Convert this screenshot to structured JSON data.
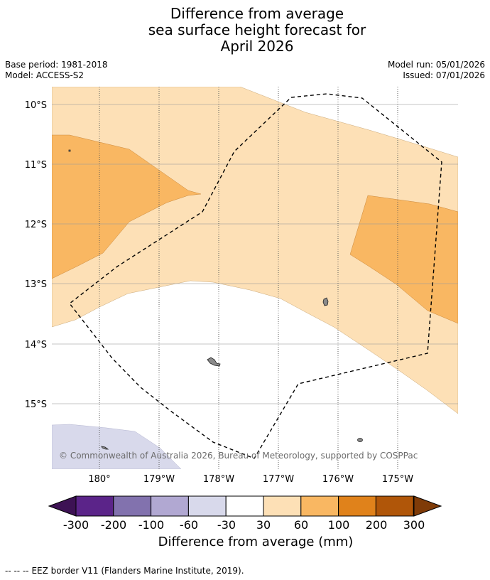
{
  "header": {
    "title_line1": "Difference from average",
    "title_line2": "sea surface height forecast for",
    "title_line3": "April 2026",
    "base_period": "Base period: 1981-2018",
    "model": "Model: ACCESS-S2",
    "model_run": "Model run: 05/01/2026",
    "issued": "Issued: 07/01/2026"
  },
  "map": {
    "lat_labels": [
      "10°S",
      "11°S",
      "12°S",
      "13°S",
      "14°S",
      "15°S"
    ],
    "lon_labels": [
      "180°",
      "179°W",
      "178°W",
      "177°W",
      "176°W",
      "175°W"
    ],
    "copyright": "© Commonwealth of Australia 2026, Bureau of Meteorology, supported by COSPPac"
  },
  "colorbar": {
    "title": "Difference from average (mm)",
    "ticks": [
      "-300",
      "-200",
      "-100",
      "-60",
      "-30",
      "30",
      "60",
      "100",
      "200",
      "300"
    ],
    "colors": [
      "#3d1254",
      "#5b2489",
      "#8272ae",
      "#b1a8d2",
      "#d8d9eb",
      "#ffffff",
      "#fde0b6",
      "#f9b762",
      "#e0821b",
      "#b05609",
      "#7f3b08"
    ]
  },
  "footer": {
    "legend_symbol": "--  --  --",
    "eez_text": "EEZ border V11 (Flanders Marine Institute, 2019)."
  }
}
